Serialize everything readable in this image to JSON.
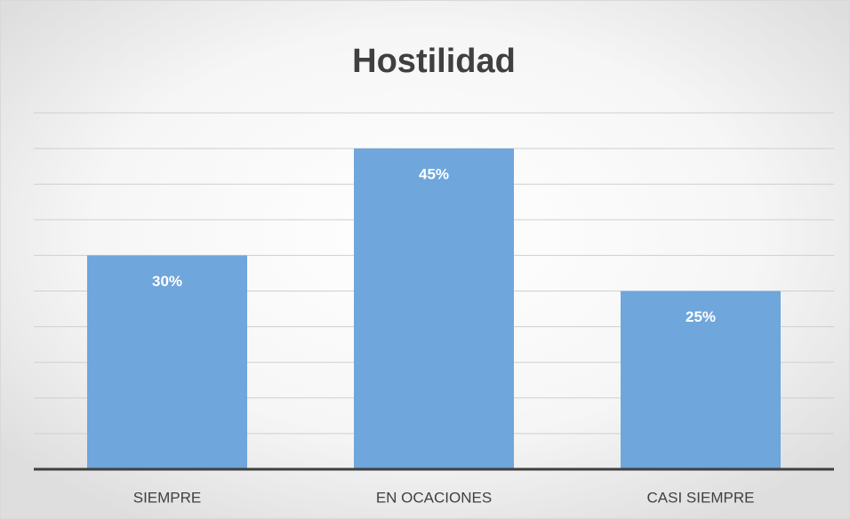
{
  "chart_data": {
    "type": "bar",
    "title": "Hostilidad",
    "categories": [
      "SIEMPRE",
      "EN OCACIONES",
      "CASI SIEMPRE"
    ],
    "values": [
      30,
      45,
      25
    ],
    "value_labels": [
      "30%",
      "45%",
      "25%"
    ],
    "color": "#6fa6db",
    "ylim": [
      0,
      50
    ],
    "yticks": [
      0,
      5,
      10,
      15,
      20,
      25,
      30,
      35,
      40,
      45,
      50
    ],
    "grid": true
  }
}
